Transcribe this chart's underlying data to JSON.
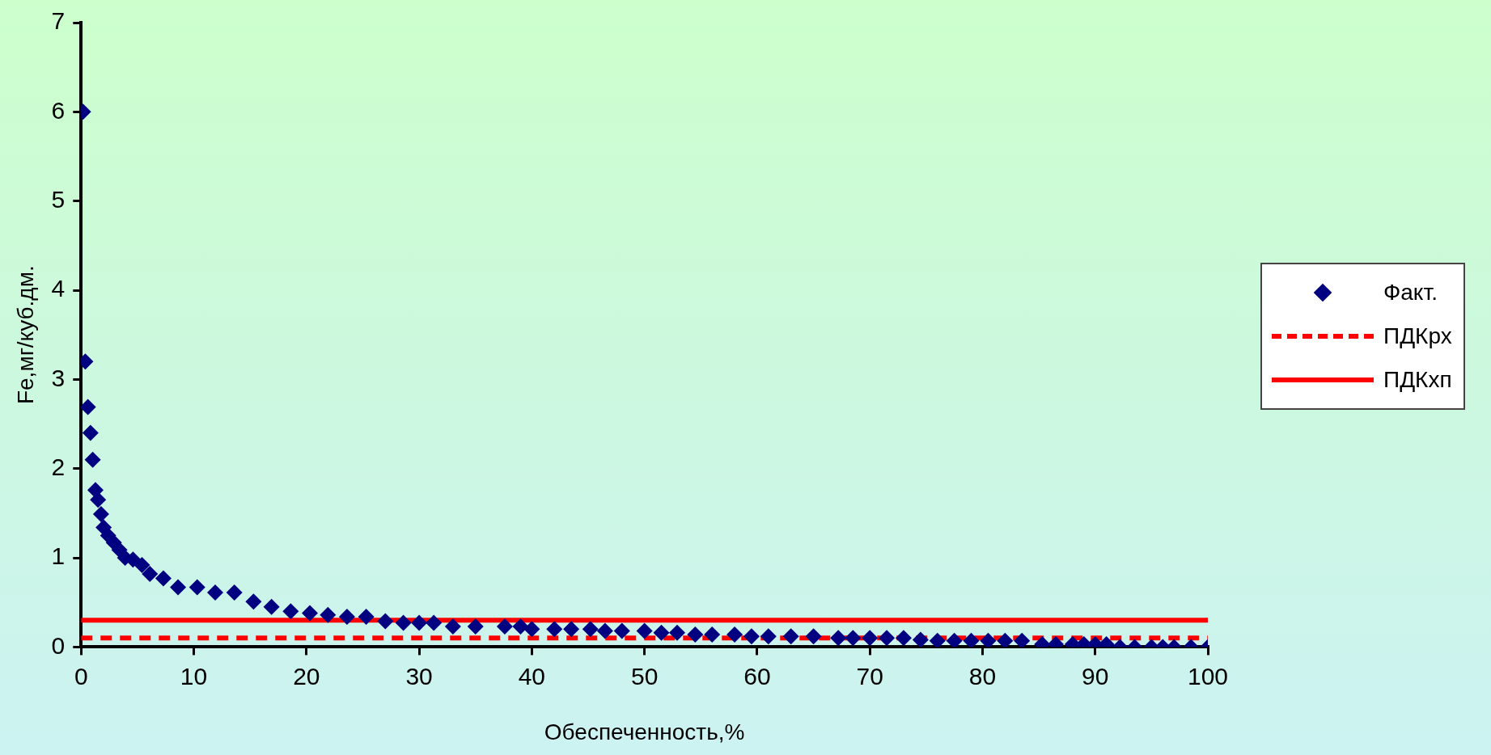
{
  "chart_data": {
    "type": "scatter",
    "xlabel": "Обеспеченность,%",
    "ylabel": "Fe,мг/куб.дм.",
    "xlim": [
      0,
      100
    ],
    "xticks": [
      0,
      10,
      20,
      30,
      40,
      50,
      60,
      70,
      80,
      90,
      100
    ],
    "ylim": [
      0,
      7
    ],
    "yticks": [
      0,
      1,
      2,
      3,
      4,
      5,
      6,
      7
    ],
    "legend": "right",
    "series": [
      {
        "name": "Факт.",
        "color": "#000080",
        "marker": "diamond",
        "x": [
          0.17,
          0.37,
          0.6,
          0.83,
          1.03,
          1.27,
          1.5,
          1.77,
          2.0,
          2.4,
          2.9,
          3.4,
          3.9,
          4.6,
          5.4,
          6.1,
          7.3,
          8.6,
          10.3,
          11.9,
          13.6,
          15.3,
          16.9,
          18.6,
          20.3,
          21.9,
          23.6,
          25.3,
          27.0,
          28.6,
          30,
          31.3,
          33,
          35,
          37.6,
          39,
          40,
          42,
          43.5,
          45.2,
          46.5,
          48,
          50,
          51.5,
          52.9,
          54.5,
          56,
          58,
          59.5,
          61,
          63,
          65,
          67.2,
          68.5,
          70,
          71.5,
          73,
          74.5,
          76,
          77.5,
          79,
          80.5,
          82,
          83.5,
          85.3,
          86.5,
          88,
          89,
          90,
          91,
          92.2,
          93.5,
          95,
          96,
          97,
          98.5,
          100
        ],
        "values": [
          6.0,
          3.2,
          2.69,
          2.4,
          2.1,
          1.76,
          1.65,
          1.49,
          1.34,
          1.25,
          1.17,
          1.09,
          1.0,
          0.98,
          0.92,
          0.82,
          0.77,
          0.67,
          0.67,
          0.61,
          0.61,
          0.51,
          0.45,
          0.4,
          0.38,
          0.36,
          0.34,
          0.34,
          0.29,
          0.27,
          0.27,
          0.27,
          0.23,
          0.23,
          0.23,
          0.23,
          0.2,
          0.2,
          0.2,
          0.2,
          0.18,
          0.18,
          0.18,
          0.16,
          0.16,
          0.14,
          0.14,
          0.14,
          0.12,
          0.12,
          0.12,
          0.12,
          0.1,
          0.1,
          0.1,
          0.1,
          0.1,
          0.08,
          0.07,
          0.07,
          0.07,
          0.07,
          0.07,
          0.07,
          0.03,
          0.03,
          0.03,
          0.03,
          0.03,
          0.03,
          0,
          0,
          0,
          0,
          0,
          0,
          0
        ]
      },
      {
        "name": "ПДКрх",
        "type": "line",
        "color": "#ff0000",
        "line_style": "dashed",
        "marker": "none",
        "x": [
          0,
          100
        ],
        "values": [
          0.1,
          0.1
        ]
      },
      {
        "name": "ПДКхп",
        "type": "line",
        "color": "#ff0000",
        "line_style": "solid",
        "marker": "none",
        "x": [
          0,
          100
        ],
        "values": [
          0.3,
          0.3
        ]
      }
    ]
  }
}
